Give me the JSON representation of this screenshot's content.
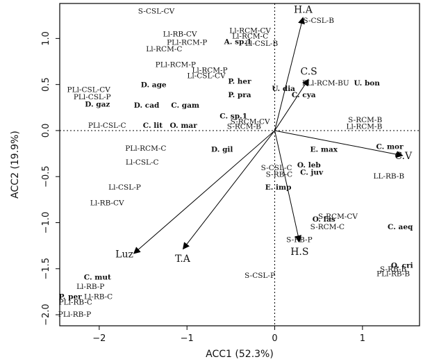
{
  "chart_data": {
    "type": "scatter",
    "title": "",
    "xlabel": "ACC1 (52.3%)",
    "ylabel": "ACC2 (19.9%)",
    "xlim": [
      -2.45,
      1.65
    ],
    "ylim": [
      -2.12,
      1.38
    ],
    "xticks": [
      -2,
      -1,
      0,
      1
    ],
    "yticks": [
      -2.0,
      -1.5,
      -1.0,
      -0.5,
      0.0,
      0.5,
      1.0
    ],
    "xtick_labels": [
      "−2",
      "−1",
      "0",
      "1"
    ],
    "ytick_labels": [
      "−2.0",
      "−1.5",
      "−1.0",
      "−0.5",
      "0.0",
      "0.5",
      "1.0"
    ],
    "zero_lines": true,
    "colors": {
      "frame": "#000000",
      "text": "#111111",
      "background": "#ffffff"
    },
    "env_vectors": [
      {
        "label": "H.A",
        "x": 0.32,
        "y": 1.22
      },
      {
        "label": "C.S",
        "x": 0.38,
        "y": 0.55
      },
      {
        "label": "C.V",
        "x": 1.45,
        "y": -0.27
      },
      {
        "label": "H.S",
        "x": 0.28,
        "y": -1.2
      },
      {
        "label": "T.A",
        "x": -1.04,
        "y": -1.28
      },
      {
        "label": "Luz",
        "x": -1.6,
        "y": -1.33
      }
    ],
    "sites": [
      {
        "label": "S-CSL-CV",
        "x": -1.35,
        "y": 1.3
      },
      {
        "label": "Ll-RB-CV",
        "x": -1.08,
        "y": 1.05
      },
      {
        "label": "PLl-RCM-P",
        "x": -1.0,
        "y": 0.96
      },
      {
        "label": "Ll-RCM-C",
        "x": -1.26,
        "y": 0.89
      },
      {
        "label": "Ll-RCM-CV",
        "x": -0.28,
        "y": 1.09
      },
      {
        "label": "Ll-RCM-C",
        "x": -0.28,
        "y": 1.03
      },
      {
        "label": "Ll-CSL-B",
        "x": -0.15,
        "y": 0.95
      },
      {
        "label": "PLl-RCM-P",
        "x": -1.13,
        "y": 0.72
      },
      {
        "label": "Ll-RCM-P",
        "x": -0.74,
        "y": 0.66
      },
      {
        "label": "Ll-CSL-CV",
        "x": -0.78,
        "y": 0.6
      },
      {
        "label": "PLl-CSL-CV",
        "x": -2.12,
        "y": 0.45
      },
      {
        "label": "PLl-CSL-P",
        "x": -2.08,
        "y": 0.37
      },
      {
        "label": "PLl-CSL-C",
        "x": -1.91,
        "y": 0.06
      },
      {
        "label": "PLl-RCM-C",
        "x": -1.47,
        "y": -0.19
      },
      {
        "label": "Ll-CSL-C",
        "x": -1.51,
        "y": -0.34
      },
      {
        "label": "Ll-CSL-P",
        "x": -1.71,
        "y": -0.61
      },
      {
        "label": "Ll-RB-CV",
        "x": -1.91,
        "y": -0.78
      },
      {
        "label": "S-CSL-B",
        "x": 0.5,
        "y": 1.2
      },
      {
        "label": "PLl-RCM-BU",
        "x": 0.58,
        "y": 0.52
      },
      {
        "label": "S-RCM-CV",
        "x": -0.28,
        "y": 0.1
      },
      {
        "label": "S-RCM-B",
        "x": -0.35,
        "y": 0.05
      },
      {
        "label": "S-RCM-B",
        "x": 1.03,
        "y": 0.12
      },
      {
        "label": "Ll-RCM-B",
        "x": 1.02,
        "y": 0.05
      },
      {
        "label": "S-CSL-C",
        "x": 0.02,
        "y": -0.4
      },
      {
        "label": "S-RB-C",
        "x": 0.05,
        "y": -0.47
      },
      {
        "label": "LL-RB-B",
        "x": 1.3,
        "y": -0.49
      },
      {
        "label": "S-RCM-CV",
        "x": 0.72,
        "y": -0.93
      },
      {
        "label": "S-RCM-C",
        "x": 0.6,
        "y": -1.04
      },
      {
        "label": "S-RB-P",
        "x": 0.28,
        "y": -1.18
      },
      {
        "label": "S-RB-B",
        "x": 1.35,
        "y": -1.5
      },
      {
        "label": "PLl-RB-B",
        "x": 1.35,
        "y": -1.55
      },
      {
        "label": "S-CSL-P",
        "x": -0.17,
        "y": -1.57
      },
      {
        "label": "Ll-RB-P",
        "x": -2.1,
        "y": -1.69
      },
      {
        "label": "Ll-RB-C",
        "x": -2.01,
        "y": -1.8
      },
      {
        "label": "PLl-RB-C",
        "x": -2.27,
        "y": -1.86
      },
      {
        "label": "PLl-RB-P",
        "x": -2.28,
        "y": -1.99
      }
    ],
    "species": [
      {
        "label": "A. sp.1",
        "x": -0.42,
        "y": 0.97
      },
      {
        "label": "D. age",
        "x": -1.38,
        "y": 0.5
      },
      {
        "label": "D. gaz",
        "x": -2.02,
        "y": 0.29
      },
      {
        "label": "D. cad",
        "x": -1.46,
        "y": 0.28
      },
      {
        "label": "C. gam",
        "x": -1.02,
        "y": 0.28
      },
      {
        "label": "P. her",
        "x": -0.4,
        "y": 0.54
      },
      {
        "label": "P. pra",
        "x": -0.4,
        "y": 0.39
      },
      {
        "label": "U. dia",
        "x": 0.1,
        "y": 0.46
      },
      {
        "label": "C. cya",
        "x": 0.33,
        "y": 0.39
      },
      {
        "label": "U. bon",
        "x": 1.05,
        "y": 0.52
      },
      {
        "label": "C. lit",
        "x": -1.39,
        "y": 0.06
      },
      {
        "label": "O. mar",
        "x": -1.04,
        "y": 0.06
      },
      {
        "label": "C. sp.1",
        "x": -0.47,
        "y": 0.16
      },
      {
        "label": "D. gil",
        "x": -0.6,
        "y": -0.2
      },
      {
        "label": "E. max",
        "x": 0.56,
        "y": -0.2
      },
      {
        "label": "C. mor",
        "x": 1.31,
        "y": -0.17
      },
      {
        "label": "O. leb",
        "x": 0.39,
        "y": -0.37
      },
      {
        "label": "C. juv",
        "x": 0.42,
        "y": -0.45
      },
      {
        "label": "E. imp",
        "x": 0.04,
        "y": -0.61
      },
      {
        "label": "O. fas",
        "x": 0.56,
        "y": -0.96
      },
      {
        "label": "C. aeq",
        "x": 1.43,
        "y": -1.04
      },
      {
        "label": "O. cri",
        "x": 1.45,
        "y": -1.46
      },
      {
        "label": "C. mut",
        "x": -2.02,
        "y": -1.59
      },
      {
        "label": "P. per",
        "x": -2.33,
        "y": -1.8
      }
    ]
  }
}
